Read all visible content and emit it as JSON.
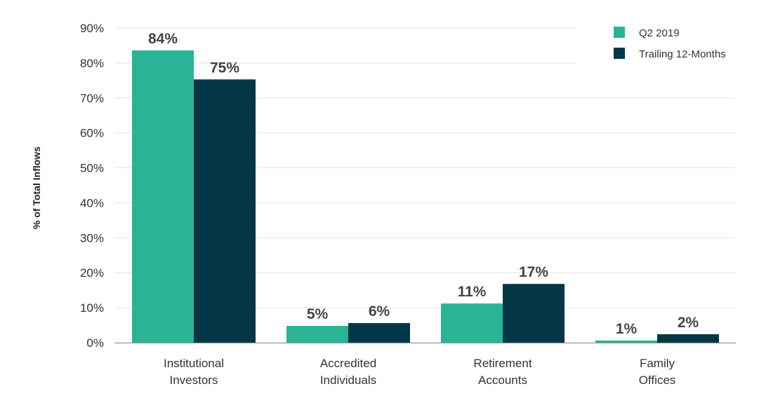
{
  "chart_data": {
    "type": "bar",
    "title": "",
    "xlabel": "",
    "ylabel": "% of Total Inflows",
    "ylim": [
      0,
      90
    ],
    "yticks": [
      0,
      10,
      20,
      30,
      40,
      50,
      60,
      70,
      80,
      90
    ],
    "ytick_labels": [
      "0%",
      "10%",
      "20%",
      "30%",
      "40%",
      "50%",
      "60%",
      "70%",
      "80%",
      "90%"
    ],
    "grid": true,
    "legend_position": "top-right",
    "categories": [
      [
        "Institutional",
        "Investors"
      ],
      [
        "Accredited",
        "Individuals"
      ],
      [
        "Retirement",
        "Accounts"
      ],
      [
        "Family",
        "Offices"
      ]
    ],
    "series": [
      {
        "name": "Q2 2019",
        "color": "#2bb396",
        "values": [
          83.6,
          4.8,
          11.2,
          0.6
        ],
        "labels": [
          "84%",
          "5%",
          "11%",
          "1%"
        ]
      },
      {
        "name": "Trailing 12-Months",
        "color": "#033746",
        "values": [
          75.3,
          5.6,
          16.8,
          2.4
        ],
        "labels": [
          "75%",
          "6%",
          "17%",
          "2%"
        ]
      }
    ]
  }
}
